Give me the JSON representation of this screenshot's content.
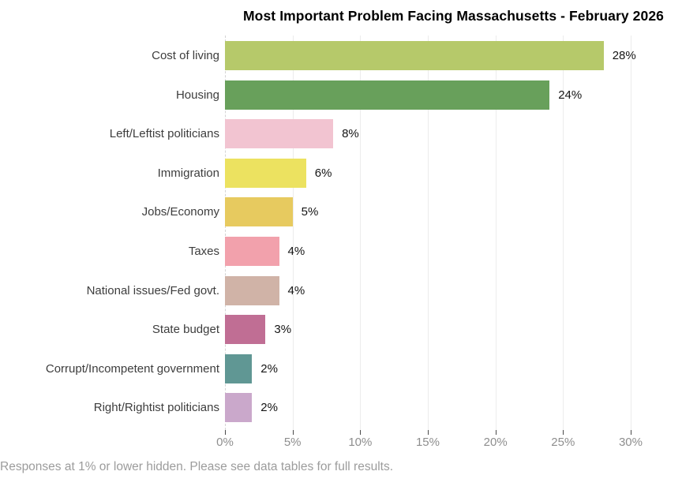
{
  "title": "Most Important Problem Facing Massachusetts - February 2026",
  "footer": {
    "note": "Responses at 1% or lower hidden. Please see data tables for full results."
  },
  "chart_data": {
    "type": "bar",
    "orientation": "horizontal",
    "title": "Most Important Problem Facing Massachusetts - February 2026",
    "categories": [
      "Cost of living",
      "Housing",
      "Left/Leftist politicians",
      "Immigration",
      "Jobs/Economy",
      "Taxes",
      "National issues/Fed govt.",
      "State budget",
      "Corrupt/Incompetent government",
      "Right/Rightist politicians"
    ],
    "values": [
      28,
      24,
      8,
      6,
      5,
      4,
      4,
      3,
      2,
      2
    ],
    "value_labels": [
      "28%",
      "24%",
      "8%",
      "6%",
      "5%",
      "4%",
      "4%",
      "3%",
      "2%",
      "2%"
    ],
    "bar_colors": [
      "#b6c96a",
      "#68a05b",
      "#f2c4d1",
      "#ece260",
      "#e7ca5f",
      "#f2a1ac",
      "#d0b3a7",
      "#c06e94",
      "#609794",
      "#caa8cb"
    ],
    "xlabel": "",
    "ylabel": "",
    "xlim": [
      0,
      32
    ],
    "x_ticks": [
      "0%",
      "5%",
      "10%",
      "15%",
      "20%",
      "25%",
      "30%"
    ],
    "x_tick_values": [
      0,
      5,
      10,
      15,
      20,
      25,
      30
    ],
    "grid": true,
    "zero_line_style": "dashed",
    "gridline_color": "#ececec",
    "axis_tick_label_color": "#8e8e8e",
    "category_label_color": "#3d3d3d",
    "value_label_color": "#141414"
  }
}
